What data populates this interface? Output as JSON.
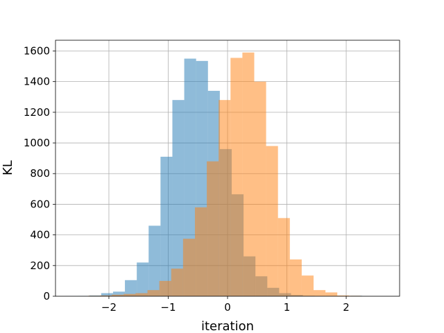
{
  "chart_data": {
    "type": "bar",
    "subtype": "overlapping-histogram",
    "title": "",
    "xlabel": "iteration",
    "ylabel": "KL",
    "xlim": [
      -2.9,
      2.9
    ],
    "ylim": [
      0,
      1670
    ],
    "grid": true,
    "legend": "none",
    "x_ticks": [
      -2,
      -1,
      0,
      1,
      2
    ],
    "x_tick_labels": [
      "−2",
      "−1",
      "0",
      "1",
      "2"
    ],
    "y_ticks": [
      0,
      200,
      400,
      600,
      800,
      1000,
      1200,
      1400,
      1600
    ],
    "y_tick_labels": [
      "0",
      "200",
      "400",
      "600",
      "800",
      "1000",
      "1200",
      "1400",
      "1600"
    ],
    "series": [
      {
        "color": "#1f77b4",
        "alpha": 0.5,
        "bin_edges": [
          -2.73,
          -2.53,
          -2.33,
          -2.13,
          -1.93,
          -1.73,
          -1.53,
          -1.33,
          -1.13,
          -0.93,
          -0.73,
          -0.53,
          -0.33,
          -0.13,
          0.07,
          0.27,
          0.47,
          0.67,
          0.87,
          1.07,
          1.27,
          1.47,
          1.67,
          1.87,
          2.07,
          2.27,
          2.47
        ],
        "counts": [
          1,
          2,
          5,
          20,
          30,
          105,
          220,
          460,
          910,
          1280,
          1550,
          1535,
          1340,
          960,
          665,
          260,
          130,
          55,
          20,
          8,
          3,
          1,
          1,
          1,
          3,
          0
        ]
      },
      {
        "color": "#ff7f0e",
        "alpha": 0.5,
        "bin_edges": [
          -2.35,
          -2.15,
          -1.95,
          -1.75,
          -1.55,
          -1.35,
          -1.15,
          -0.95,
          -0.75,
          -0.55,
          -0.35,
          -0.15,
          0.05,
          0.25,
          0.45,
          0.65,
          0.85,
          1.05,
          1.25,
          1.45,
          1.65,
          1.85,
          2.05,
          2.25
        ],
        "counts": [
          3,
          5,
          10,
          15,
          20,
          40,
          100,
          180,
          375,
          580,
          880,
          1280,
          1555,
          1590,
          1400,
          980,
          510,
          240,
          135,
          40,
          25,
          5,
          3
        ]
      }
    ]
  }
}
